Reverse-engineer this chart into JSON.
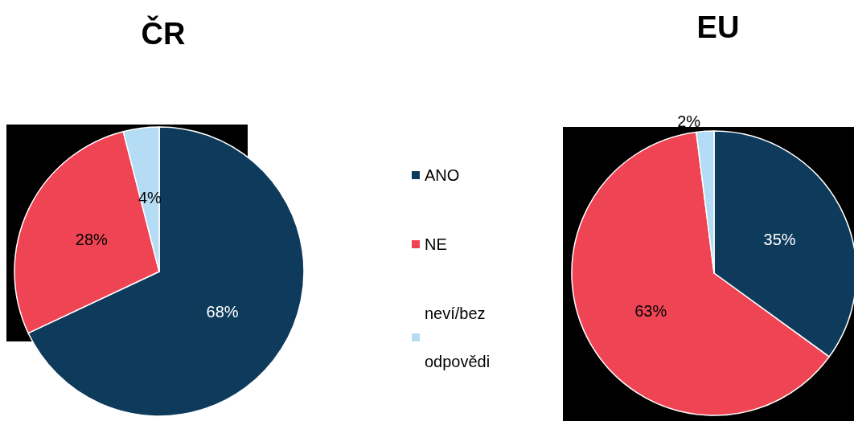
{
  "chart_data": {
    "type": "pie",
    "categories": [
      "ANO",
      "NE",
      "neví/bez odpovědi"
    ],
    "colors": [
      "#0e3a5c",
      "#ef4454",
      "#b4dcf5"
    ],
    "legend": "right",
    "series": [
      {
        "name": "ČR",
        "values": [
          68,
          28,
          4
        ],
        "value_labels": [
          "68%",
          "28%",
          "4%"
        ]
      },
      {
        "name": "EU",
        "values": [
          35,
          63,
          2
        ],
        "value_labels": [
          "35%",
          "63%",
          "2%"
        ]
      }
    ]
  }
}
